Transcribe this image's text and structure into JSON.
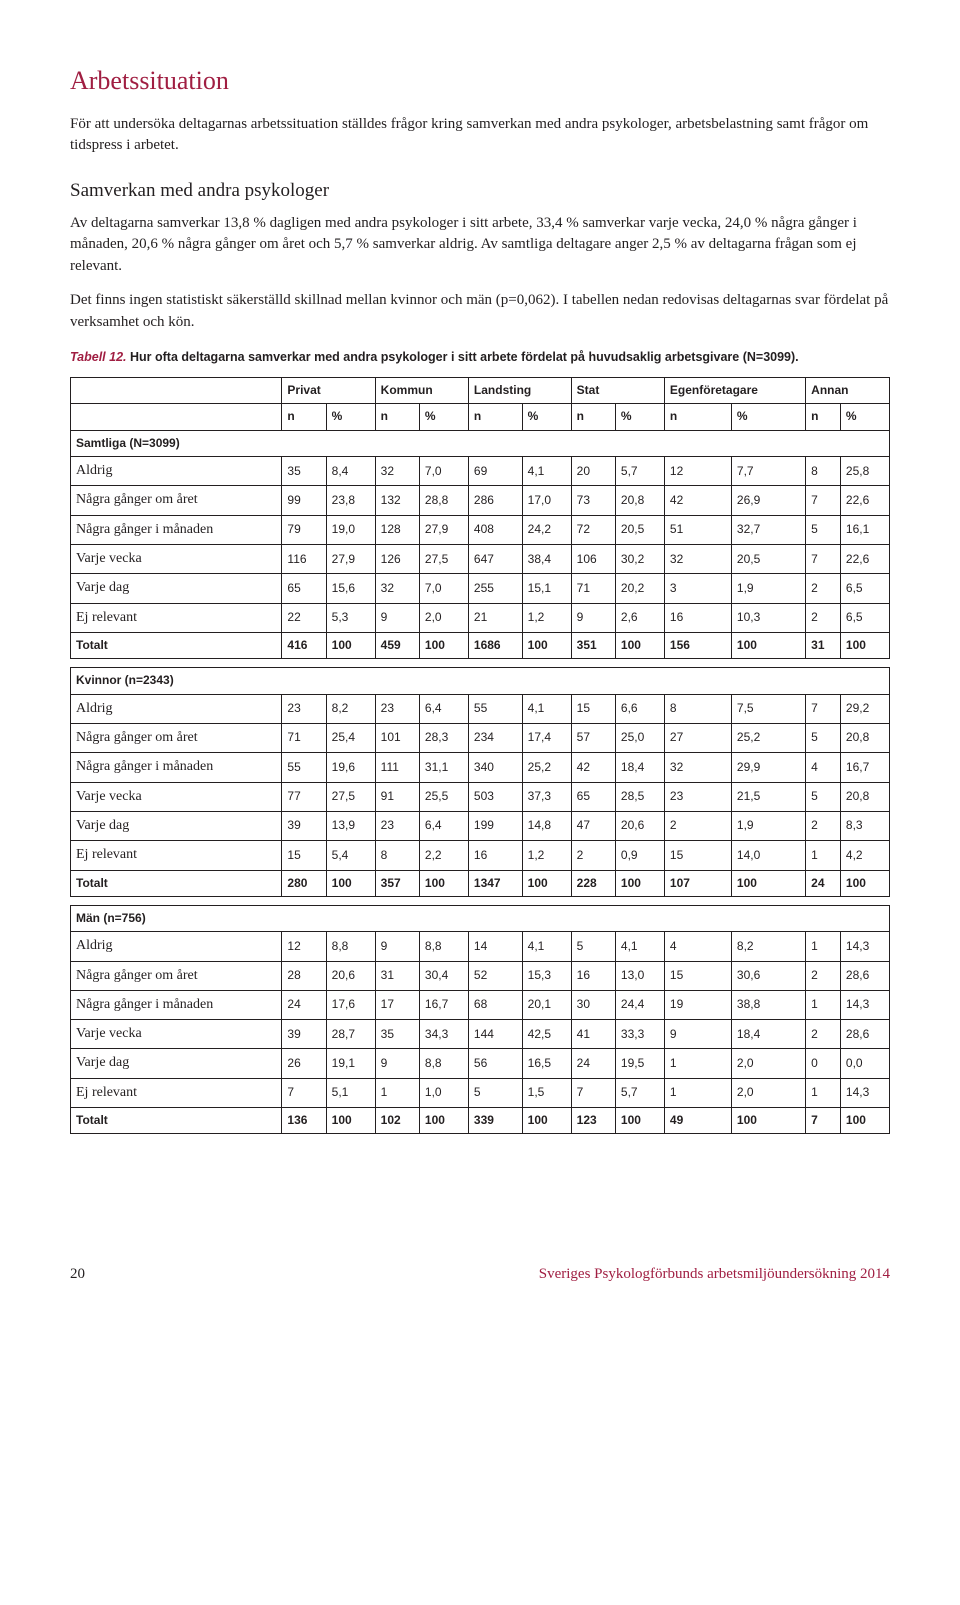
{
  "heading": "Arbetssituation",
  "intro": "För att undersöka deltagarnas arbetssituation ställdes frågor kring samverkan med andra psykologer, arbetsbelastning samt frågor om tidspress i arbetet.",
  "subheading": "Samverkan med andra psykologer",
  "para1": "Av deltagarna samverkar 13,8 % dagligen med andra psykologer i sitt arbete, 33,4 % samverkar varje vecka, 24,0 % några gånger i månaden, 20,6 % några gånger om året och 5,7 % samverkar aldrig. Av samtliga deltagare anger 2,5 % av deltagarna frågan som ej relevant.",
  "para2": "Det finns ingen statistiskt säkerställd skillnad mellan kvinnor och män (p=0,062). I tabellen nedan redovisas deltagarnas svar fördelat på verksamhet och kön.",
  "caption_num": "Tabell 12.",
  "caption_txt": "Hur ofta deltagarna samverkar med andra psykologer i sitt arbete fördelat på huvudsaklig arbetsgivare (N=3099).",
  "colgroups": [
    "Privat",
    "Kommun",
    "Landsting",
    "Stat",
    "Egenföretagare",
    "Annan"
  ],
  "subhead": [
    "n",
    "%",
    "n",
    "%",
    "n",
    "%",
    "n",
    "%",
    "n",
    "%",
    "n",
    "%"
  ],
  "sections": [
    {
      "title": "Samtliga (N=3099)",
      "rows": [
        {
          "label": "Aldrig",
          "vals": [
            "35",
            "8,4",
            "32",
            "7,0",
            "69",
            "4,1",
            "20",
            "5,7",
            "12",
            "7,7",
            "8",
            "25,8"
          ]
        },
        {
          "label": "Några gånger om året",
          "vals": [
            "99",
            "23,8",
            "132",
            "28,8",
            "286",
            "17,0",
            "73",
            "20,8",
            "42",
            "26,9",
            "7",
            "22,6"
          ]
        },
        {
          "label": "Några gånger i månaden",
          "vals": [
            "79",
            "19,0",
            "128",
            "27,9",
            "408",
            "24,2",
            "72",
            "20,5",
            "51",
            "32,7",
            "5",
            "16,1"
          ]
        },
        {
          "label": "Varje vecka",
          "vals": [
            "116",
            "27,9",
            "126",
            "27,5",
            "647",
            "38,4",
            "106",
            "30,2",
            "32",
            "20,5",
            "7",
            "22,6"
          ]
        },
        {
          "label": "Varje dag",
          "vals": [
            "65",
            "15,6",
            "32",
            "7,0",
            "255",
            "15,1",
            "71",
            "20,2",
            "3",
            "1,9",
            "2",
            "6,5"
          ]
        },
        {
          "label": "Ej relevant",
          "vals": [
            "22",
            "5,3",
            "9",
            "2,0",
            "21",
            "1,2",
            "9",
            "2,6",
            "16",
            "10,3",
            "2",
            "6,5"
          ]
        }
      ],
      "total": {
        "label": "Totalt",
        "vals": [
          "416",
          "100",
          "459",
          "100",
          "1686",
          "100",
          "351",
          "100",
          "156",
          "100",
          "31",
          "100"
        ]
      }
    },
    {
      "title": "Kvinnor (n=2343)",
      "rows": [
        {
          "label": "Aldrig",
          "vals": [
            "23",
            "8,2",
            "23",
            "6,4",
            "55",
            "4,1",
            "15",
            "6,6",
            "8",
            "7,5",
            "7",
            "29,2"
          ]
        },
        {
          "label": "Några gånger om året",
          "vals": [
            "71",
            "25,4",
            "101",
            "28,3",
            "234",
            "17,4",
            "57",
            "25,0",
            "27",
            "25,2",
            "5",
            "20,8"
          ]
        },
        {
          "label": "Några gånger i månaden",
          "vals": [
            "55",
            "19,6",
            "111",
            "31,1",
            "340",
            "25,2",
            "42",
            "18,4",
            "32",
            "29,9",
            "4",
            "16,7"
          ]
        },
        {
          "label": "Varje vecka",
          "vals": [
            "77",
            "27,5",
            "91",
            "25,5",
            "503",
            "37,3",
            "65",
            "28,5",
            "23",
            "21,5",
            "5",
            "20,8"
          ]
        },
        {
          "label": "Varje dag",
          "vals": [
            "39",
            "13,9",
            "23",
            "6,4",
            "199",
            "14,8",
            "47",
            "20,6",
            "2",
            "1,9",
            "2",
            "8,3"
          ]
        },
        {
          "label": "Ej relevant",
          "vals": [
            "15",
            "5,4",
            "8",
            "2,2",
            "16",
            "1,2",
            "2",
            "0,9",
            "15",
            "14,0",
            "1",
            "4,2"
          ]
        }
      ],
      "total": {
        "label": "Totalt",
        "vals": [
          "280",
          "100",
          "357",
          "100",
          "1347",
          "100",
          "228",
          "100",
          "107",
          "100",
          "24",
          "100"
        ]
      }
    },
    {
      "title": "Män (n=756)",
      "rows": [
        {
          "label": "Aldrig",
          "vals": [
            "12",
            "8,8",
            "9",
            "8,8",
            "14",
            "4,1",
            "5",
            "4,1",
            "4",
            "8,2",
            "1",
            "14,3"
          ]
        },
        {
          "label": "Några gånger om året",
          "vals": [
            "28",
            "20,6",
            "31",
            "30,4",
            "52",
            "15,3",
            "16",
            "13,0",
            "15",
            "30,6",
            "2",
            "28,6"
          ]
        },
        {
          "label": "Några gånger i månaden",
          "vals": [
            "24",
            "17,6",
            "17",
            "16,7",
            "68",
            "20,1",
            "30",
            "24,4",
            "19",
            "38,8",
            "1",
            "14,3"
          ]
        },
        {
          "label": "Varje vecka",
          "vals": [
            "39",
            "28,7",
            "35",
            "34,3",
            "144",
            "42,5",
            "41",
            "33,3",
            "9",
            "18,4",
            "2",
            "28,6"
          ]
        },
        {
          "label": "Varje dag",
          "vals": [
            "26",
            "19,1",
            "9",
            "8,8",
            "56",
            "16,5",
            "24",
            "19,5",
            "1",
            "2,0",
            "0",
            "0,0"
          ]
        },
        {
          "label": "Ej relevant",
          "vals": [
            "7",
            "5,1",
            "1",
            "1,0",
            "5",
            "1,5",
            "7",
            "5,7",
            "1",
            "2,0",
            "1",
            "14,3"
          ]
        }
      ],
      "total": {
        "label": "Totalt",
        "vals": [
          "136",
          "100",
          "102",
          "100",
          "339",
          "100",
          "123",
          "100",
          "49",
          "100",
          "7",
          "100"
        ]
      }
    }
  ],
  "page_number": "20",
  "footer_src": "Sveriges Psykologförbunds arbetsmiljöundersökning 2014"
}
